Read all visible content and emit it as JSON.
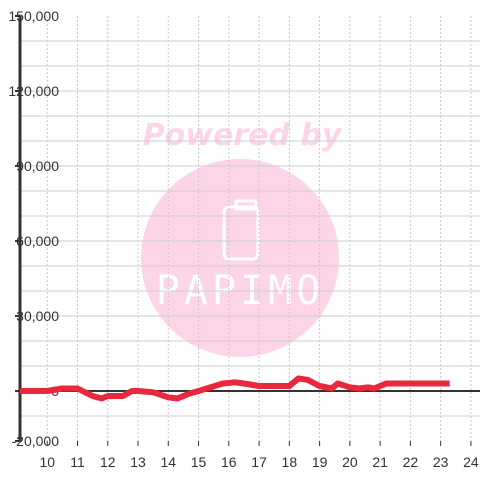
{
  "chart_data": {
    "type": "line",
    "title": "",
    "xlabel": "",
    "ylabel": "",
    "xlim": [
      9.1,
      24.3
    ],
    "ylim": [
      -20000,
      150000
    ],
    "x_ticks": [
      10,
      11,
      12,
      13,
      14,
      15,
      16,
      17,
      18,
      19,
      20,
      21,
      22,
      23,
      24
    ],
    "x_tick_labels": [
      "10",
      "11",
      "12",
      "13",
      "14",
      "15",
      "16",
      "17",
      "18",
      "19",
      "20",
      "21",
      "22",
      "23",
      "24"
    ],
    "y_ticks": [
      150000,
      120000,
      90000,
      60000,
      30000,
      0,
      -20000
    ],
    "y_tick_labels": [
      "150,000",
      "120,000",
      "90,000",
      "60,000",
      "30,000",
      "0",
      "-20,000"
    ],
    "y_grid": [
      140000,
      130000,
      120000,
      110000,
      100000,
      90000,
      80000,
      70000,
      60000,
      50000,
      40000,
      30000,
      20000,
      10000,
      -10000
    ],
    "grid": true,
    "series": [
      {
        "color": "#e8283c",
        "x": [
          9.1,
          10.0,
          10.5,
          11.0,
          11.5,
          11.8,
          12.0,
          12.5,
          12.8,
          13.0,
          13.5,
          14.0,
          14.3,
          14.7,
          15.0,
          15.4,
          15.8,
          16.2,
          16.5,
          17.0,
          17.5,
          18.0,
          18.3,
          18.6,
          19.0,
          19.4,
          19.6,
          20.0,
          20.3,
          20.6,
          20.8,
          21.2,
          22.0,
          23.3
        ],
        "y": [
          0,
          0,
          1000,
          1000,
          -2000,
          -3000,
          -2000,
          -2000,
          0,
          0,
          -500,
          -2500,
          -3000,
          -1000,
          0,
          1500,
          3000,
          3500,
          3000,
          2000,
          2000,
          2000,
          5000,
          4500,
          2000,
          1000,
          3000,
          1500,
          1000,
          1500,
          1000,
          3000,
          3000,
          3000
        ]
      }
    ]
  },
  "watermark": {
    "tagline": "Powered by",
    "brand": "PAPIMO",
    "color": "#fcd6e8"
  }
}
